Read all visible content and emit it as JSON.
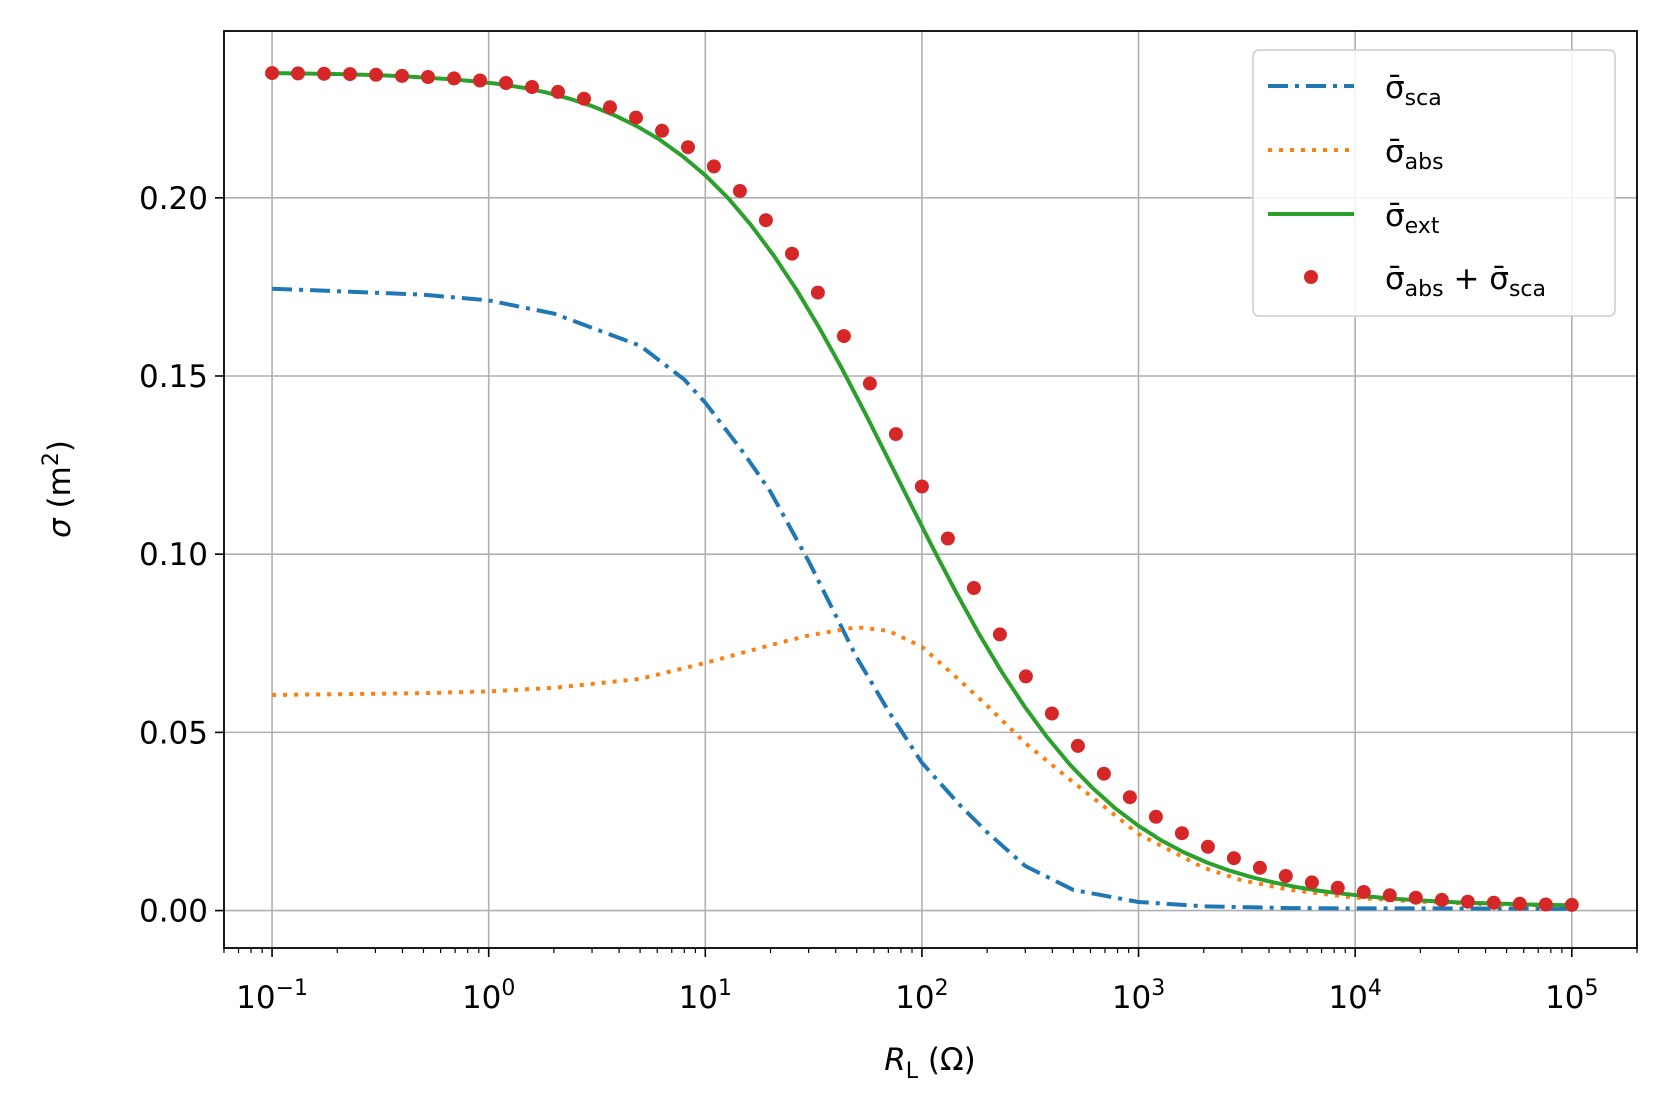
{
  "chart_data": {
    "type": "line",
    "title": "",
    "xscale": "log",
    "xlabel": {
      "main": "R",
      "sub": "L",
      "unit": "(Ω)"
    },
    "ylabel": {
      "main": "σ",
      "unit_prefix": "(m",
      "unit_sup": "2",
      "unit_suffix": ")"
    },
    "xlim": [
      0.06,
      200000
    ],
    "ylim": [
      -0.0105,
      0.2468
    ],
    "grid": true,
    "legend_position": "top-right",
    "x_ticks": [
      {
        "value": 0.1,
        "base": "10",
        "exp": "−1"
      },
      {
        "value": 1,
        "base": "10",
        "exp": "0"
      },
      {
        "value": 10,
        "base": "10",
        "exp": "1"
      },
      {
        "value": 100,
        "base": "10",
        "exp": "2"
      },
      {
        "value": 1000,
        "base": "10",
        "exp": "3"
      },
      {
        "value": 10000,
        "base": "10",
        "exp": "4"
      },
      {
        "value": 100000,
        "base": "10",
        "exp": "5"
      }
    ],
    "y_ticks": [
      {
        "value": 0.0,
        "label": "0.00"
      },
      {
        "value": 0.05,
        "label": "0.05"
      },
      {
        "value": 0.1,
        "label": "0.10"
      },
      {
        "value": 0.15,
        "label": "0.15"
      },
      {
        "value": 0.2,
        "label": "0.20"
      }
    ],
    "series": [
      {
        "name_main": "σ̄",
        "name_sub": "sca",
        "style": "dashdot",
        "color": "#1f77b4",
        "x": [
          0.1,
          0.2,
          0.5,
          1,
          2,
          5,
          8,
          10,
          15,
          20,
          30,
          50,
          70,
          100,
          150,
          200,
          300,
          500,
          1000,
          2000,
          5000,
          10000,
          20000,
          100000
        ],
        "y": [
          0.1745,
          0.1738,
          0.1728,
          0.1712,
          0.1675,
          0.1585,
          0.149,
          0.1425,
          0.1285,
          0.1175,
          0.098,
          0.071,
          0.056,
          0.0415,
          0.0295,
          0.022,
          0.0125,
          0.0058,
          0.0024,
          0.0012,
          0.0007,
          0.0006,
          0.0006,
          0.0005
        ]
      },
      {
        "name_main": "σ̄",
        "name_sub": "abs",
        "style": "dotted",
        "color": "#ff7f0e",
        "x": [
          0.1,
          0.2,
          0.5,
          1,
          2,
          5,
          10,
          20,
          30,
          50,
          70,
          100,
          150,
          200,
          300,
          500,
          700,
          1000,
          2000,
          3000,
          5000,
          10000,
          20000,
          50000,
          100000
        ],
        "y": [
          0.0605,
          0.0607,
          0.061,
          0.0615,
          0.0625,
          0.065,
          0.0695,
          0.0745,
          0.0772,
          0.0795,
          0.0785,
          0.074,
          0.0645,
          0.0575,
          0.047,
          0.036,
          0.029,
          0.0215,
          0.012,
          0.0085,
          0.0058,
          0.0036,
          0.0025,
          0.0016,
          0.0014
        ]
      },
      {
        "name_main": "σ̄",
        "name_sub": "ext",
        "style": "solid",
        "color": "#2ca02c",
        "x": [
          0.1,
          0.1274,
          0.1624,
          0.2069,
          0.2637,
          0.336,
          0.4281,
          0.5456,
          0.6952,
          0.8859,
          1.129,
          1.438,
          1.833,
          2.336,
          2.976,
          3.793,
          4.833,
          6.158,
          7.848,
          10.0,
          12.74,
          16.24,
          20.69,
          26.37,
          33.6,
          42.81,
          54.56,
          69.52,
          88.59,
          112.9,
          143.8,
          183.3,
          233.6,
          297.6,
          379.3,
          483.3,
          615.8,
          784.8,
          1000,
          1274,
          1624,
          2069,
          2637,
          3360,
          4281,
          5456,
          6952,
          8859,
          11288,
          14384,
          18330,
          23357,
          29764,
          37927,
          48329,
          61585,
          78476,
          100000
        ],
        "y": [
          0.235,
          0.2349,
          0.2348,
          0.2347,
          0.2345,
          0.2343,
          0.234,
          0.2336,
          0.2332,
          0.2326,
          0.2319,
          0.2309,
          0.2296,
          0.2279,
          0.2258,
          0.2232,
          0.2201,
          0.2163,
          0.2117,
          0.2063,
          0.1999,
          0.1924,
          0.1838,
          0.1742,
          0.1635,
          0.152,
          0.1397,
          0.127,
          0.1142,
          0.1015,
          0.0893,
          0.0777,
          0.067,
          0.0573,
          0.0486,
          0.0409,
          0.0343,
          0.0286,
          0.0238,
          0.0197,
          0.0163,
          0.0135,
          0.0112,
          0.0093,
          0.0078,
          0.0065,
          0.0055,
          0.0047,
          0.004,
          0.0034,
          0.003,
          0.0026,
          0.0023,
          0.0021,
          0.0019,
          0.0017,
          0.0016,
          0.0015
        ]
      },
      {
        "name_main": "σ̄",
        "name_sub": "abs",
        "name_plus": "+",
        "name_main2": "σ̄",
        "name_sub2": "sca",
        "style": "markers",
        "color": "#d62728",
        "x": [
          0.1,
          0.1318,
          0.1738,
          0.2291,
          0.302,
          0.3981,
          0.5248,
          0.6918,
          0.912,
          1.202,
          1.585,
          2.089,
          2.754,
          3.631,
          4.786,
          6.31,
          8.318,
          10.96,
          14.45,
          19.05,
          25.12,
          33.11,
          43.65,
          57.54,
          75.86,
          100.0,
          131.8,
          173.8,
          229.1,
          302.0,
          398.1,
          524.8,
          691.8,
          912.0,
          1202,
          1585,
          2089,
          2754,
          3631,
          4786,
          6310,
          8318,
          10965,
          14454,
          19055,
          25119,
          33113,
          43652,
          57544,
          75858,
          100000
        ],
        "y": [
          0.235,
          0.2349,
          0.2348,
          0.2347,
          0.2345,
          0.2342,
          0.2339,
          0.2335,
          0.2329,
          0.2322,
          0.2311,
          0.2297,
          0.2278,
          0.2254,
          0.2225,
          0.2188,
          0.2142,
          0.2088,
          0.2019,
          0.1937,
          0.1843,
          0.1734,
          0.1612,
          0.1479,
          0.1337,
          0.119,
          0.1044,
          0.0905,
          0.0775,
          0.0657,
          0.0553,
          0.0462,
          0.0384,
          0.0318,
          0.0263,
          0.0217,
          0.0179,
          0.0147,
          0.012,
          0.0097,
          0.0079,
          0.0064,
          0.0052,
          0.0043,
          0.0036,
          0.003,
          0.0025,
          0.0022,
          0.0019,
          0.0017,
          0.0016
        ]
      }
    ]
  }
}
